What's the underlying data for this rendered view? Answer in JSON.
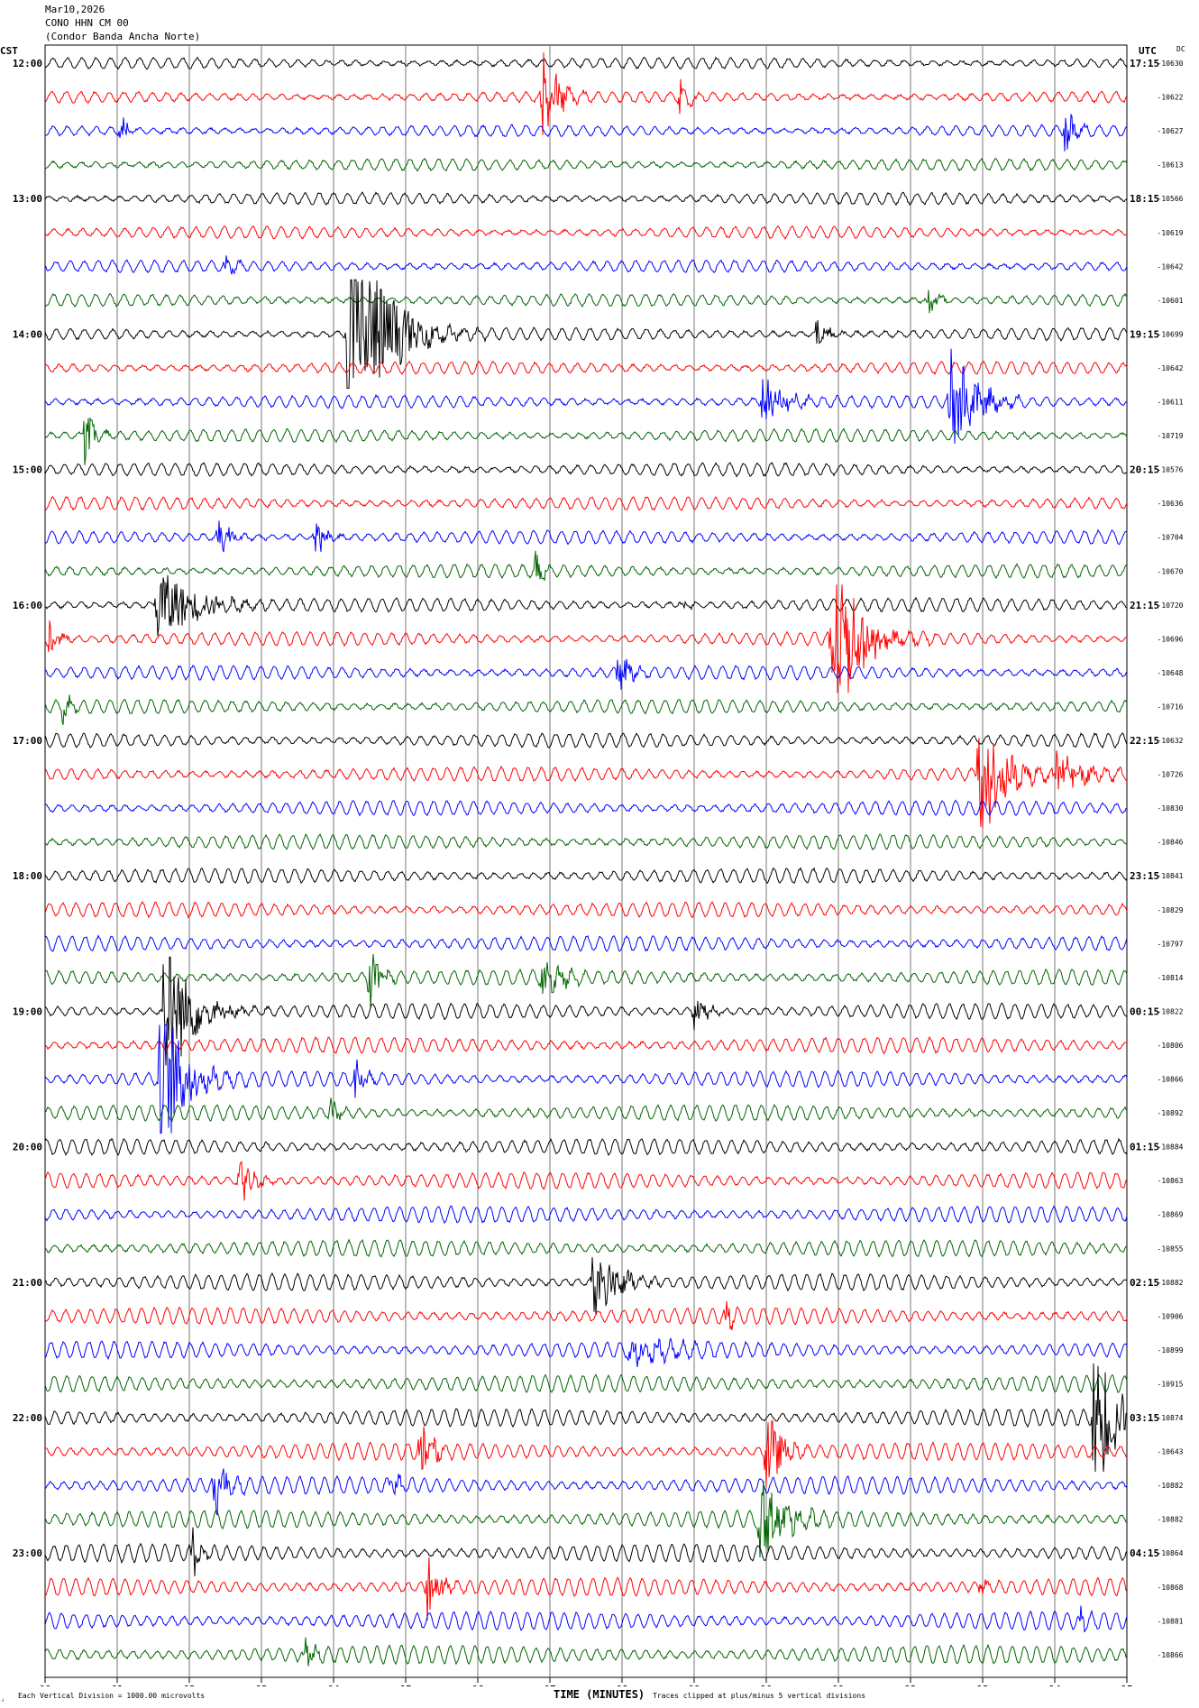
{
  "header": {
    "date": "Mar10,2026",
    "station": "CONO HHN CM 00",
    "station_name": "(Condor Banda Ancha Norte)"
  },
  "chart_data": {
    "type": "line",
    "title": "",
    "xlabel": "TIME (MINUTES)",
    "xlim": [
      0,
      15
    ],
    "x_ticks": [
      "00",
      "01",
      "02",
      "03",
      "04",
      "05",
      "06",
      "07",
      "08",
      "09",
      "10",
      "11",
      "12",
      "13",
      "14",
      "15"
    ],
    "left_axis_label": "CST",
    "right_axis_label": "UTC",
    "dc_label": "DC",
    "trace_colors": [
      "#000000",
      "#ff0000",
      "#0000ff",
      "#006400"
    ],
    "left_hour_labels": [
      "12:00",
      "13:00",
      "14:00",
      "15:00",
      "16:00",
      "17:00",
      "18:00",
      "19:00",
      "20:00",
      "21:00",
      "22:00",
      "23:00"
    ],
    "right_hour_labels": [
      "17:15",
      "18:15",
      "19:15",
      "20:15",
      "21:15",
      "22:15",
      "23:15",
      "00:15",
      "01:15",
      "02:15",
      "03:15",
      "04:15"
    ],
    "dc_offsets": [
      "-10630",
      "-10622",
      "-10627",
      "-10613",
      "-10566",
      "-10619",
      "-10642",
      "-10601",
      "-10699",
      "-10642",
      "-10611",
      "-10719",
      "-10576",
      "-10636",
      "-10704",
      "-10670",
      "-10720",
      "-10696",
      "-10648",
      "-10716",
      "-10632",
      "-10726",
      "-10830",
      "-10846",
      "-10841",
      "-10829",
      "-10797",
      "-10814",
      "-10822",
      "-10806",
      "-10866",
      "-10892",
      "-10884",
      "-10863",
      "-10869",
      "-10855",
      "-10882",
      "-10906",
      "-10899",
      "-10915",
      "-10874",
      "-10643",
      "-10882",
      "-10882",
      "-10864",
      "-10868",
      "-10881",
      "-10866"
    ],
    "events": [
      {
        "trace": 1,
        "minute": 6.9,
        "amp": 3.5,
        "dur": 0.5
      },
      {
        "trace": 1,
        "minute": 8.8,
        "amp": 1.6,
        "dur": 0.3
      },
      {
        "trace": 2,
        "minute": 1.05,
        "amp": 0.9,
        "dur": 0.3
      },
      {
        "trace": 2,
        "minute": 14.15,
        "amp": 1.6,
        "dur": 0.3
      },
      {
        "trace": 6,
        "minute": 2.5,
        "amp": 0.6,
        "dur": 0.3
      },
      {
        "trace": 7,
        "minute": 12.25,
        "amp": 1.3,
        "dur": 0.3
      },
      {
        "trace": 8,
        "minute": 4.2,
        "amp": 9.0,
        "dur": 1.2
      },
      {
        "trace": 8,
        "minute": 10.7,
        "amp": 0.9,
        "dur": 0.4
      },
      {
        "trace": 10,
        "minute": 9.95,
        "amp": 1.5,
        "dur": 0.8
      },
      {
        "trace": 10,
        "minute": 12.55,
        "amp": 3.8,
        "dur": 0.8
      },
      {
        "trace": 11,
        "minute": 0.55,
        "amp": 1.6,
        "dur": 0.4
      },
      {
        "trace": 14,
        "minute": 2.4,
        "amp": 1.6,
        "dur": 0.4
      },
      {
        "trace": 14,
        "minute": 3.75,
        "amp": 1.2,
        "dur": 0.4
      },
      {
        "trace": 15,
        "minute": 6.8,
        "amp": 0.9,
        "dur": 0.3
      },
      {
        "trace": 16,
        "minute": 1.55,
        "amp": 2.5,
        "dur": 1.4
      },
      {
        "trace": 16,
        "minute": 8.8,
        "amp": 0.5,
        "dur": 0.3
      },
      {
        "trace": 17,
        "minute": 0.05,
        "amp": 1.7,
        "dur": 0.3
      },
      {
        "trace": 17,
        "minute": 10.9,
        "amp": 6.5,
        "dur": 0.9
      },
      {
        "trace": 18,
        "minute": 7.95,
        "amp": 1.5,
        "dur": 0.4
      },
      {
        "trace": 19,
        "minute": 0.25,
        "amp": 0.8,
        "dur": 0.3
      },
      {
        "trace": 21,
        "minute": 12.95,
        "amp": 5.0,
        "dur": 0.8
      },
      {
        "trace": 21,
        "minute": 14.0,
        "amp": 1.8,
        "dur": 0.9
      },
      {
        "trace": 27,
        "minute": 4.5,
        "amp": 1.9,
        "dur": 0.4
      },
      {
        "trace": 27,
        "minute": 6.9,
        "amp": 1.3,
        "dur": 0.7
      },
      {
        "trace": 28,
        "minute": 1.65,
        "amp": 5.5,
        "dur": 0.9
      },
      {
        "trace": 28,
        "minute": 9.0,
        "amp": 1.4,
        "dur": 0.4
      },
      {
        "trace": 30,
        "minute": 1.6,
        "amp": 6.0,
        "dur": 0.8
      },
      {
        "trace": 30,
        "minute": 4.3,
        "amp": 1.5,
        "dur": 0.3
      },
      {
        "trace": 31,
        "minute": 3.95,
        "amp": 0.9,
        "dur": 0.3
      },
      {
        "trace": 33,
        "minute": 2.7,
        "amp": 2.2,
        "dur": 0.4
      },
      {
        "trace": 36,
        "minute": 7.6,
        "amp": 3.0,
        "dur": 0.8
      },
      {
        "trace": 37,
        "minute": 9.45,
        "amp": 1.2,
        "dur": 0.2
      },
      {
        "trace": 38,
        "minute": 8.1,
        "amp": 0.9,
        "dur": 1.5
      },
      {
        "trace": 40,
        "minute": 14.55,
        "amp": 7.0,
        "dur": 0.6
      },
      {
        "trace": 41,
        "minute": 5.2,
        "amp": 2.3,
        "dur": 0.4
      },
      {
        "trace": 41,
        "minute": 10.0,
        "amp": 3.0,
        "dur": 0.5
      },
      {
        "trace": 42,
        "minute": 2.35,
        "amp": 2.0,
        "dur": 0.4
      },
      {
        "trace": 42,
        "minute": 4.8,
        "amp": 1.2,
        "dur": 0.3
      },
      {
        "trace": 43,
        "minute": 9.9,
        "amp": 2.7,
        "dur": 0.9
      },
      {
        "trace": 44,
        "minute": 2.05,
        "amp": 2.0,
        "dur": 0.3
      },
      {
        "trace": 45,
        "minute": 5.3,
        "amp": 2.4,
        "dur": 0.4
      },
      {
        "trace": 45,
        "minute": 12.95,
        "amp": 0.6,
        "dur": 0.3
      },
      {
        "trace": 46,
        "minute": 14.35,
        "amp": 0.6,
        "dur": 0.3
      },
      {
        "trace": 47,
        "minute": 3.6,
        "amp": 0.9,
        "dur": 0.4
      }
    ]
  },
  "footer": {
    "scale_note": "Each Vertical Division = 1000.00 microvolts",
    "clip_note": "Traces clipped at plus/minus 5 vertical divisions",
    "logo_glyph": "⁁"
  }
}
